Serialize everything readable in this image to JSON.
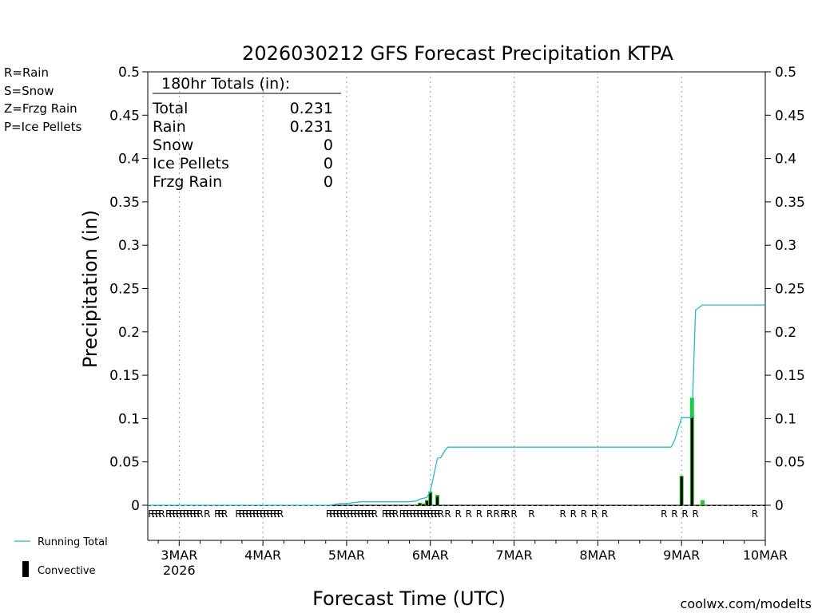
{
  "chart_data": {
    "type": "bar",
    "title": "2026030212 GFS Forecast Precipitation KTPA",
    "xlabel": "Forecast Time (UTC)",
    "ylabel": "Precipitation (in)",
    "ylim": [
      0,
      0.5
    ],
    "xlim_hours": [
      -9,
      168
    ],
    "y_ticks": [
      0,
      0.05,
      0.1,
      0.15,
      0.2,
      0.25,
      0.3,
      0.35,
      0.4,
      0.45,
      0.5
    ],
    "y_tick_labels": [
      "0",
      "0.05",
      "0.1",
      "0.15",
      "0.2",
      "0.25",
      "0.3",
      "0.35",
      "0.4",
      "0.45",
      "0.5"
    ],
    "x_ticks": [
      {
        "hour": 0,
        "label": "3MAR",
        "sublabel": "2026"
      },
      {
        "hour": 24,
        "label": "4MAR",
        "sublabel": ""
      },
      {
        "hour": 48,
        "label": "5MAR",
        "sublabel": ""
      },
      {
        "hour": 72,
        "label": "6MAR",
        "sublabel": ""
      },
      {
        "hour": 96,
        "label": "7MAR",
        "sublabel": ""
      },
      {
        "hour": 120,
        "label": "8MAR",
        "sublabel": ""
      },
      {
        "hour": 144,
        "label": "9MAR",
        "sublabel": ""
      },
      {
        "hour": 168,
        "label": "10MAR",
        "sublabel": ""
      }
    ],
    "totals": {
      "header": "180hr Totals (in):",
      "rows": [
        {
          "label": "Total",
          "value": "0.231"
        },
        {
          "label": "Rain",
          "value": "0.231"
        },
        {
          "label": "Snow",
          "value": "0"
        },
        {
          "label": "Ice Pellets",
          "value": "0"
        },
        {
          "label": "Frzg Rain",
          "value": "0"
        }
      ]
    },
    "ptype_legend": [
      {
        "text": "R=Rain",
        "color": "#22cc22"
      },
      {
        "text": "S=Snow",
        "color": "#3344ee"
      },
      {
        "text": "Z=Frzg Rain",
        "color": "#ee8833"
      },
      {
        "text": "P=Ice Pellets",
        "color": "#ee2299"
      }
    ],
    "series_legend": [
      {
        "name": "Running Total",
        "color": "#22bbcc"
      },
      {
        "name": "Convective",
        "color": "#000000"
      }
    ],
    "running_total": {
      "name": "Running Total",
      "hours": [
        -9,
        43,
        45,
        46,
        48,
        52,
        60,
        66,
        68,
        69,
        70,
        71,
        72,
        73,
        74,
        75,
        76,
        77,
        141,
        142,
        144,
        145,
        147,
        148,
        150,
        168
      ],
      "values": [
        0,
        0,
        0.001,
        0.002,
        0.002,
        0.004,
        0.004,
        0.004,
        0.005,
        0.007,
        0.008,
        0.009,
        0.016,
        0.035,
        0.054,
        0.055,
        0.062,
        0.067,
        0.067,
        0.075,
        0.101,
        0.101,
        0.101,
        0.225,
        0.231,
        0.231
      ]
    },
    "bars": {
      "hours": [
        69,
        70,
        71,
        72,
        74,
        144,
        147,
        150
      ],
      "total": [
        0.003,
        0.002,
        0.006,
        0.016,
        0.012,
        0.034,
        0.124,
        0.006
      ],
      "convective": [
        0.002,
        0.001,
        0.005,
        0.014,
        0.01,
        0.033,
        0.102,
        0.0
      ]
    },
    "ptype_marks_hours": [
      -8,
      -7,
      -6,
      -5,
      -3,
      -2,
      -1,
      0,
      1,
      2,
      3,
      4,
      5,
      6,
      8,
      11,
      12,
      13,
      17,
      18,
      19,
      20,
      21,
      22,
      23,
      24,
      25,
      26,
      27,
      28,
      29,
      43,
      44,
      45,
      46,
      47,
      48,
      49,
      50,
      51,
      52,
      53,
      54,
      55,
      56,
      59,
      60,
      61,
      62,
      64,
      65,
      66,
      67,
      68,
      69,
      70,
      71,
      72,
      73,
      74,
      75,
      77,
      80,
      83,
      86,
      89,
      91,
      93,
      94,
      96,
      101,
      110,
      113,
      116,
      119,
      122,
      139,
      142,
      145,
      148,
      165
    ],
    "ptype_mark_letter": "R",
    "ptype_mark_color": "#22cc22"
  },
  "footer": {
    "credit": "coolwx.com/modelts",
    "credit_color": "#dd2222"
  },
  "colors": {
    "running_total": "#22bbcc",
    "rain": "#22cc22",
    "convective": "#000000",
    "grid": "#999999"
  }
}
